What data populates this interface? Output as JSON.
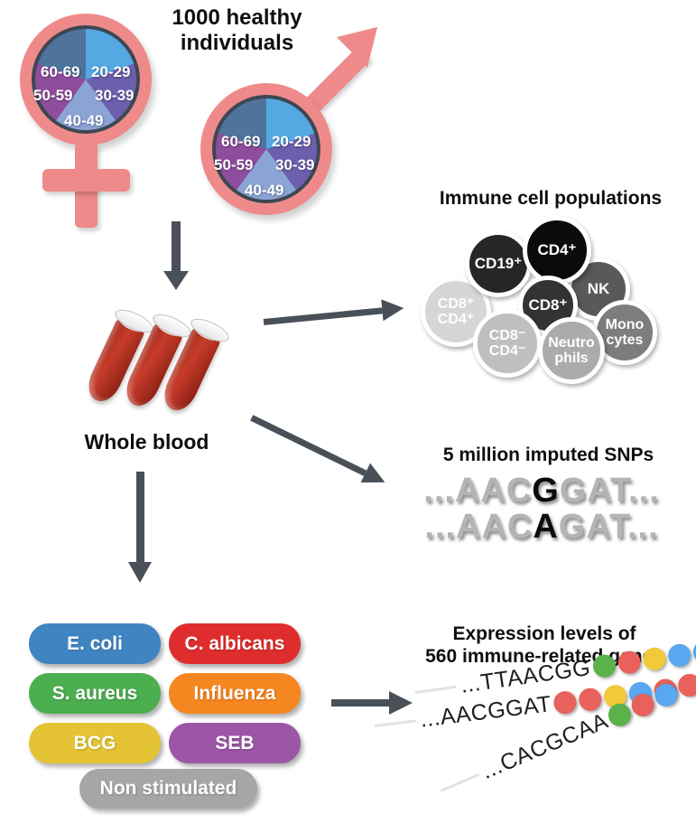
{
  "header": {
    "title": "1000 healthy\nindividuals"
  },
  "demographics": {
    "age_groups": [
      "20-29",
      "30-39",
      "40-49",
      "50-59",
      "60-69"
    ],
    "slice_colors": {
      "20-29": "#54a9e2",
      "30-39": "#6c60ae",
      "40-49": "#8ba4d6",
      "50-59": "#8e4d9d",
      "60-69": "#4e739d"
    },
    "gender_symbol_color": "#ef8a8a"
  },
  "blood": {
    "label": "Whole blood"
  },
  "immune": {
    "title": "Immune cell populations",
    "cells": [
      {
        "label": "CD19⁺",
        "color": "#262626"
      },
      {
        "label": "CD4⁺",
        "color": "#0b0b0b"
      },
      {
        "label": "NK",
        "color": "#595959"
      },
      {
        "label": "CD8⁺",
        "color": "#333333"
      },
      {
        "label": "CD8⁺\nCD4⁺",
        "color": "#d6d6d6"
      },
      {
        "label": "CD8⁻\nCD4⁻",
        "color": "#bfbfbf"
      },
      {
        "label": "Neutro\nphils",
        "color": "#ababab"
      },
      {
        "label": "Mono\ncytes",
        "color": "#7d7d7d"
      }
    ]
  },
  "snps": {
    "title": "5 million imputed SNPs",
    "rows": [
      {
        "pre": "...AAC",
        "snp": "G",
        "post": "GAT..."
      },
      {
        "pre": "...AAC",
        "snp": "A",
        "post": "GAT..."
      }
    ]
  },
  "stimuli": {
    "items": [
      {
        "label": "E. coli",
        "color": "#4085c2"
      },
      {
        "label": "C. albicans",
        "color": "#df2d2d"
      },
      {
        "label": "S. aureus",
        "color": "#4bae4f"
      },
      {
        "label": "Influenza",
        "color": "#f6861f"
      },
      {
        "label": "BCG",
        "color": "#e4c434"
      },
      {
        "label": "SEB",
        "color": "#9d56a7"
      },
      {
        "label": "Non stimulated",
        "color": "#a6a6a6"
      }
    ]
  },
  "expression": {
    "title": "Expression levels of\n560 immune-related genes",
    "rows": [
      {
        "sequence": "...TTAACGG",
        "dots": [
          "#5bb14a",
          "#e8615c",
          "#f2ca39",
          "#58a7f0",
          "#58a7f0"
        ]
      },
      {
        "sequence": "...AACGGAT",
        "dots": [
          "#e8615c",
          "#e8615c",
          "#f2ca39",
          "#58a7f0",
          "#e8615c"
        ]
      },
      {
        "sequence": "...CACGCAA",
        "dots": [
          "#5bb14a",
          "#e8615c",
          "#58a7f0",
          "#e8615c",
          "#e8615c"
        ]
      }
    ]
  },
  "colors": {
    "arrow": "#495058"
  }
}
